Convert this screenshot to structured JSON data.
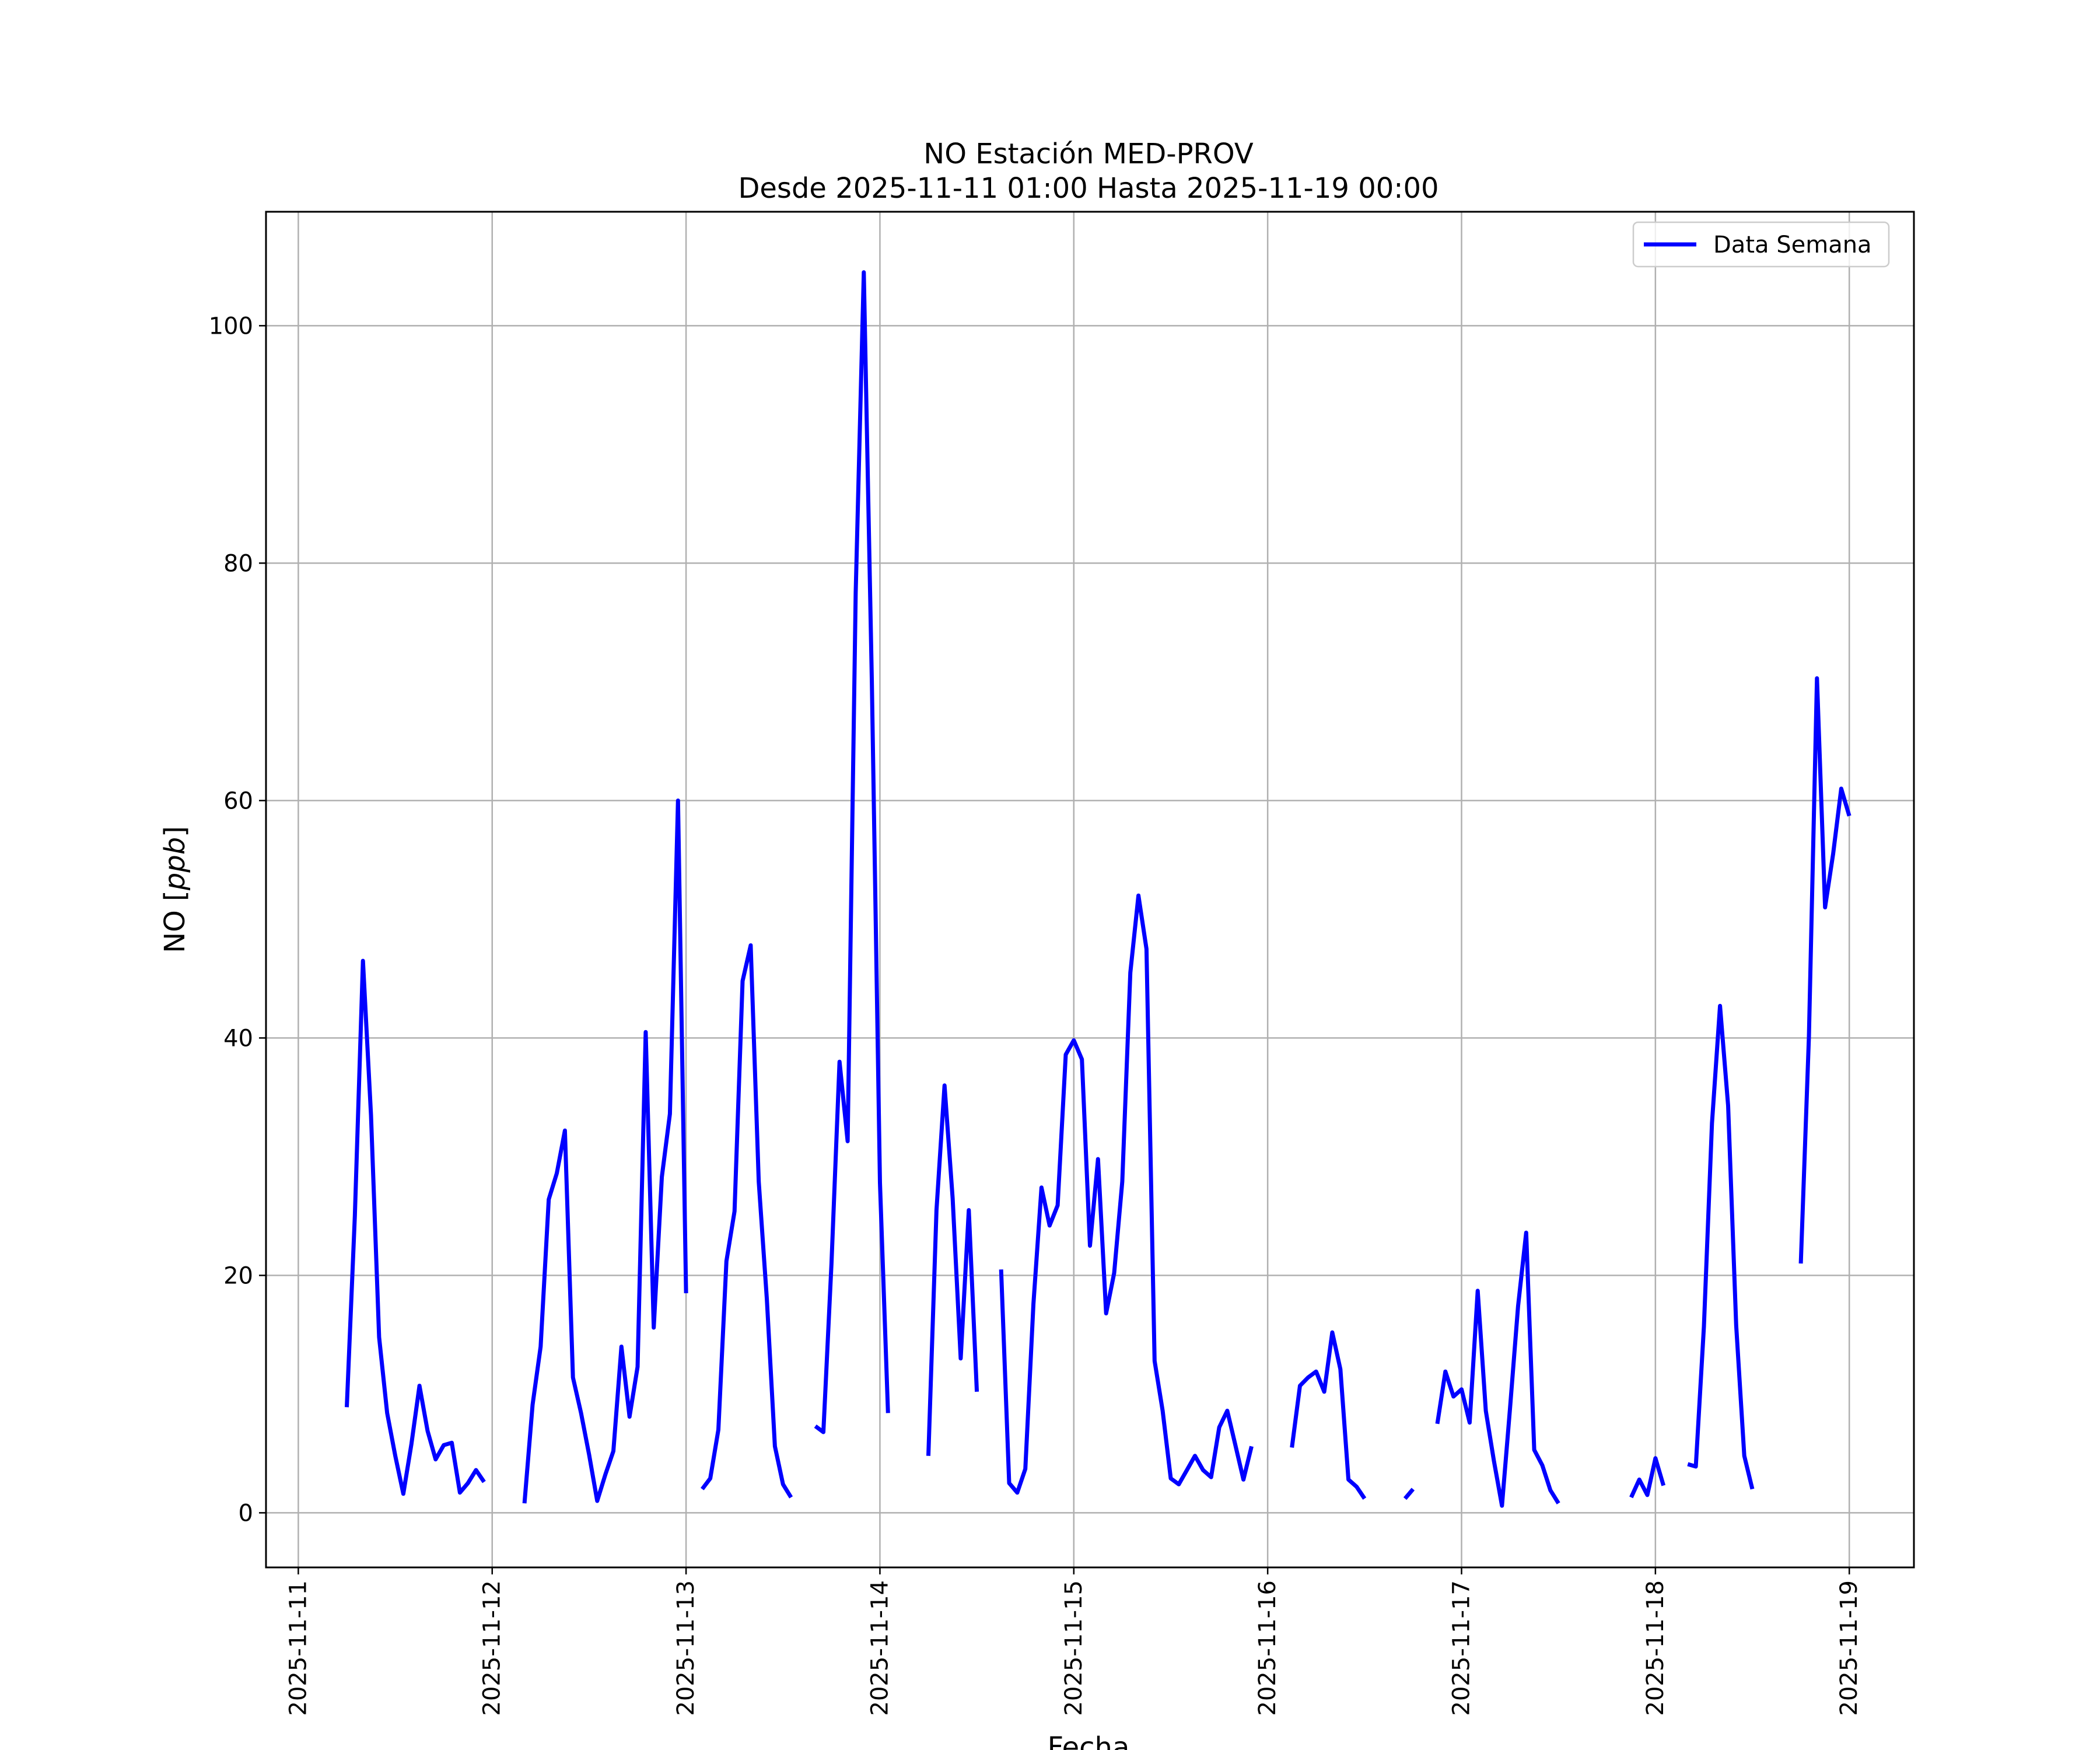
{
  "chart_data": {
    "type": "line",
    "title": "NO Estación MED-PROV",
    "subtitle": "Desde 2025-11-11 01:00 Hasta 2025-11-19 00:00",
    "xlabel": "Fecha",
    "ylabel_prefix": "NO [",
    "ylabel_unit": "ppb",
    "ylabel_suffix": "]",
    "xlim": [
      "2025-11-10 20:00",
      "2025-11-19 08:00"
    ],
    "ylim": [
      -4.6,
      109.6
    ],
    "grid": true,
    "legend": {
      "position": "top-right"
    },
    "xticks": [
      "2025-11-11",
      "2025-11-12",
      "2025-11-13",
      "2025-11-14",
      "2025-11-15",
      "2025-11-16",
      "2025-11-17",
      "2025-11-18",
      "2025-11-19"
    ],
    "yticks": [
      0,
      20,
      40,
      60,
      80,
      100
    ],
    "series": [
      {
        "name": "Data Semana",
        "color": "#0000ff",
        "segments": [
          [
            [
              "2025-11-11 06:00",
              8.9
            ],
            [
              "2025-11-11 07:00",
              25.0
            ],
            [
              "2025-11-11 08:00",
              46.5
            ],
            [
              "2025-11-11 09:00",
              33.5
            ],
            [
              "2025-11-11 10:00",
              14.8
            ],
            [
              "2025-11-11 11:00",
              8.4
            ],
            [
              "2025-11-11 12:00",
              4.8
            ],
            [
              "2025-11-11 13:00",
              1.6
            ],
            [
              "2025-11-11 14:00",
              5.8
            ],
            [
              "2025-11-11 15:00",
              10.7
            ],
            [
              "2025-11-11 16:00",
              6.9
            ],
            [
              "2025-11-11 17:00",
              4.5
            ],
            [
              "2025-11-11 18:00",
              5.7
            ],
            [
              "2025-11-11 19:00",
              5.9
            ],
            [
              "2025-11-11 20:00",
              1.7
            ],
            [
              "2025-11-11 21:00",
              2.5
            ],
            [
              "2025-11-11 22:00",
              3.6
            ],
            [
              "2025-11-11 23:00",
              2.6
            ]
          ],
          [
            [
              "2025-11-12 04:00",
              0.8
            ],
            [
              "2025-11-12 05:00",
              9.1
            ],
            [
              "2025-11-12 06:00",
              14.0
            ],
            [
              "2025-11-12 07:00",
              26.4
            ],
            [
              "2025-11-12 08:00",
              28.6
            ],
            [
              "2025-11-12 09:00",
              32.2
            ],
            [
              "2025-11-12 10:00",
              11.4
            ],
            [
              "2025-11-12 11:00",
              8.4
            ],
            [
              "2025-11-12 12:00",
              4.9
            ],
            [
              "2025-11-12 13:00",
              1.0
            ],
            [
              "2025-11-12 14:00",
              3.2
            ],
            [
              "2025-11-12 15:00",
              5.2
            ],
            [
              "2025-11-12 16:00",
              14.0
            ],
            [
              "2025-11-12 17:00",
              8.1
            ],
            [
              "2025-11-12 18:00",
              12.3
            ],
            [
              "2025-11-12 19:00",
              40.5
            ],
            [
              "2025-11-12 20:00",
              15.6
            ],
            [
              "2025-11-12 21:00",
              28.3
            ],
            [
              "2025-11-12 22:00",
              33.6
            ],
            [
              "2025-11-12 23:00",
              60.0
            ],
            [
              "2025-11-13 00:00",
              18.5
            ]
          ],
          [
            [
              "2025-11-13 02:00",
              2.0
            ],
            [
              "2025-11-13 03:00",
              2.9
            ],
            [
              "2025-11-13 04:00",
              7.0
            ],
            [
              "2025-11-13 05:00",
              21.2
            ],
            [
              "2025-11-13 06:00",
              25.4
            ],
            [
              "2025-11-13 07:00",
              44.8
            ],
            [
              "2025-11-13 08:00",
              47.8
            ],
            [
              "2025-11-13 09:00",
              27.9
            ],
            [
              "2025-11-13 10:00",
              18.0
            ],
            [
              "2025-11-13 11:00",
              5.6
            ],
            [
              "2025-11-13 12:00",
              2.4
            ],
            [
              "2025-11-13 13:00",
              1.3
            ]
          ],
          [
            [
              "2025-11-13 16:00",
              7.3
            ],
            [
              "2025-11-13 17:00",
              6.8
            ],
            [
              "2025-11-13 18:00",
              21.0
            ],
            [
              "2025-11-13 19:00",
              38.0
            ],
            [
              "2025-11-13 20:00",
              31.3
            ],
            [
              "2025-11-13 21:00",
              77.5
            ],
            [
              "2025-11-13 22:00",
              104.5
            ],
            [
              "2025-11-13 23:00",
              70.0
            ],
            [
              "2025-11-14 00:00",
              27.8
            ],
            [
              "2025-11-14 01:00",
              8.4
            ]
          ],
          [
            [
              "2025-11-14 06:00",
              4.8
            ],
            [
              "2025-11-14 07:00",
              25.5
            ],
            [
              "2025-11-14 08:00",
              36.0
            ],
            [
              "2025-11-14 09:00",
              26.5
            ],
            [
              "2025-11-14 10:00",
              13.0
            ],
            [
              "2025-11-14 11:00",
              25.5
            ],
            [
              "2025-11-14 12:00",
              10.2
            ]
          ],
          [
            [
              "2025-11-14 15:00",
              20.5
            ],
            [
              "2025-11-14 16:00",
              2.5
            ],
            [
              "2025-11-14 17:00",
              1.7
            ],
            [
              "2025-11-14 18:00",
              3.7
            ],
            [
              "2025-11-14 19:00",
              17.6
            ],
            [
              "2025-11-14 20:00",
              27.4
            ],
            [
              "2025-11-14 21:00",
              24.2
            ],
            [
              "2025-11-14 22:00",
              25.9
            ],
            [
              "2025-11-14 23:00",
              38.6
            ],
            [
              "2025-11-15 00:00",
              39.8
            ],
            [
              "2025-11-15 01:00",
              38.2
            ],
            [
              "2025-11-15 02:00",
              22.5
            ],
            [
              "2025-11-15 03:00",
              29.8
            ],
            [
              "2025-11-15 04:00",
              16.8
            ],
            [
              "2025-11-15 05:00",
              20.2
            ],
            [
              "2025-11-15 06:00",
              27.9
            ],
            [
              "2025-11-15 07:00",
              45.5
            ],
            [
              "2025-11-15 08:00",
              52.0
            ],
            [
              "2025-11-15 09:00",
              47.5
            ],
            [
              "2025-11-15 10:00",
              12.8
            ],
            [
              "2025-11-15 11:00",
              8.6
            ],
            [
              "2025-11-15 12:00",
              2.9
            ],
            [
              "2025-11-15 13:00",
              2.4
            ],
            [
              "2025-11-15 14:00",
              3.6
            ],
            [
              "2025-11-15 15:00",
              4.8
            ],
            [
              "2025-11-15 16:00",
              3.6
            ],
            [
              "2025-11-15 17:00",
              3.0
            ],
            [
              "2025-11-15 18:00",
              7.2
            ],
            [
              "2025-11-15 19:00",
              8.6
            ],
            [
              "2025-11-15 20:00",
              5.7
            ],
            [
              "2025-11-15 21:00",
              2.8
            ],
            [
              "2025-11-15 22:00",
              5.6
            ]
          ],
          [
            [
              "2025-11-16 03:00",
              5.5
            ],
            [
              "2025-11-16 04:00",
              10.7
            ],
            [
              "2025-11-16 05:00",
              11.4
            ],
            [
              "2025-11-16 06:00",
              11.9
            ],
            [
              "2025-11-16 07:00",
              10.2
            ],
            [
              "2025-11-16 08:00",
              15.2
            ],
            [
              "2025-11-16 09:00",
              12.1
            ],
            [
              "2025-11-16 10:00",
              2.8
            ],
            [
              "2025-11-16 11:00",
              2.2
            ],
            [
              "2025-11-16 12:00",
              1.2
            ]
          ],
          [
            [
              "2025-11-16 17:00",
              1.2
            ],
            [
              "2025-11-16 18:00",
              2.0
            ]
          ],
          [
            [
              "2025-11-16 21:00",
              7.5
            ],
            [
              "2025-11-16 22:00",
              11.9
            ],
            [
              "2025-11-16 23:00",
              9.8
            ],
            [
              "2025-11-17 00:00",
              10.4
            ],
            [
              "2025-11-17 01:00",
              7.6
            ],
            [
              "2025-11-17 02:00",
              18.7
            ],
            [
              "2025-11-17 03:00",
              8.6
            ],
            [
              "2025-11-17 04:00",
              4.4
            ],
            [
              "2025-11-17 05:00",
              0.6
            ],
            [
              "2025-11-17 06:00",
              8.8
            ],
            [
              "2025-11-17 07:00",
              17.4
            ],
            [
              "2025-11-17 08:00",
              23.6
            ],
            [
              "2025-11-17 09:00",
              5.3
            ],
            [
              "2025-11-17 10:00",
              4.0
            ],
            [
              "2025-11-17 11:00",
              1.9
            ],
            [
              "2025-11-17 12:00",
              0.8
            ]
          ],
          [
            [
              "2025-11-17 21:00",
              1.3
            ],
            [
              "2025-11-17 22:00",
              2.8
            ],
            [
              "2025-11-17 23:00",
              1.5
            ],
            [
              "2025-11-18 00:00",
              4.6
            ],
            [
              "2025-11-18 01:00",
              2.3
            ]
          ],
          [
            [
              "2025-11-18 04:00",
              4.1
            ],
            [
              "2025-11-18 05:00",
              3.9
            ],
            [
              "2025-11-18 06:00",
              15.7
            ],
            [
              "2025-11-18 07:00",
              32.8
            ],
            [
              "2025-11-18 08:00",
              42.7
            ],
            [
              "2025-11-18 09:00",
              34.3
            ],
            [
              "2025-11-18 10:00",
              15.8
            ],
            [
              "2025-11-18 11:00",
              4.8
            ],
            [
              "2025-11-18 12:00",
              2.0
            ]
          ],
          [
            [
              "2025-11-18 18:00",
              21.0
            ],
            [
              "2025-11-18 19:00",
              40.1
            ],
            [
              "2025-11-18 20:00",
              70.3
            ],
            [
              "2025-11-18 21:00",
              51.0
            ],
            [
              "2025-11-18 22:00",
              55.5
            ],
            [
              "2025-11-18 23:00",
              61.0
            ],
            [
              "2025-11-19 00:00",
              58.7
            ]
          ]
        ]
      }
    ]
  }
}
